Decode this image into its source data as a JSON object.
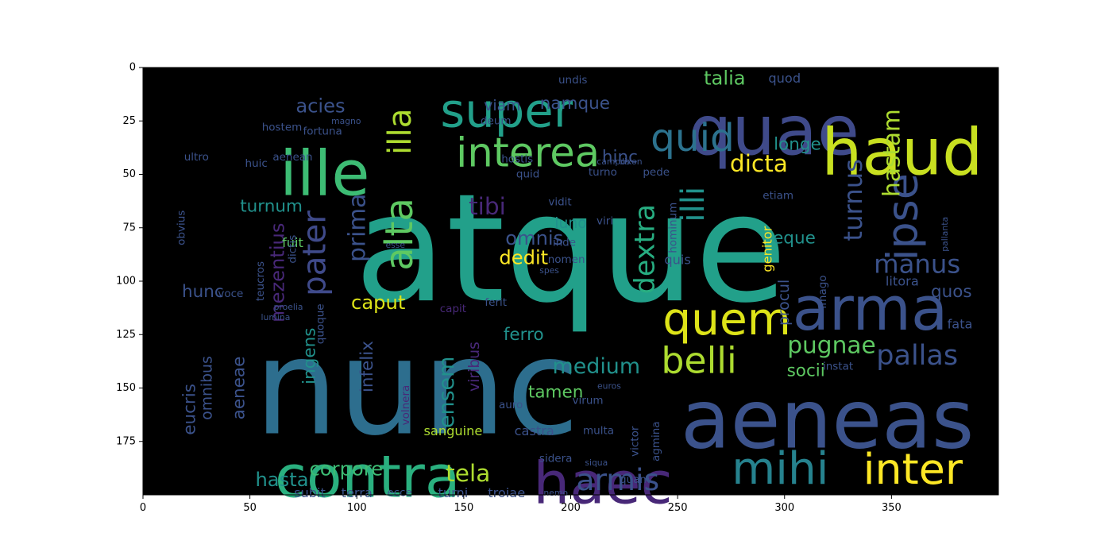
{
  "chart_data": {
    "type": "wordcloud",
    "title": "",
    "xlabel": "",
    "ylabel": "",
    "xlim": [
      0,
      400
    ],
    "ylim": [
      200,
      0
    ],
    "x_ticks": [
      0,
      50,
      100,
      150,
      200,
      250,
      300,
      350
    ],
    "y_ticks": [
      0,
      25,
      50,
      75,
      100,
      125,
      150,
      175
    ],
    "background": "#000000",
    "palette": [
      "#440154",
      "#3b528b",
      "#21918c",
      "#5ec962",
      "#fde725"
    ],
    "words": [
      {
        "text": "atque",
        "x": 200,
        "y": 85,
        "size": 70,
        "color": "#22a08a",
        "rot": 0
      },
      {
        "text": "nunc",
        "x": 128,
        "y": 150,
        "size": 62,
        "color": "#2d6e8e",
        "rot": 0
      },
      {
        "text": "aeneas",
        "x": 320,
        "y": 165,
        "size": 38,
        "color": "#3b528b",
        "rot": 0
      },
      {
        "text": "quae",
        "x": 295,
        "y": 30,
        "size": 32,
        "color": "#3f4a8a",
        "rot": 0
      },
      {
        "text": "haud",
        "x": 355,
        "y": 40,
        "size": 30,
        "color": "#c8e020",
        "rot": 0
      },
      {
        "text": "ille",
        "x": 85,
        "y": 50,
        "size": 29,
        "color": "#3dbc74",
        "rot": 0
      },
      {
        "text": "arma",
        "x": 340,
        "y": 113,
        "size": 28,
        "color": "#3b528b",
        "rot": 0
      },
      {
        "text": "contra",
        "x": 105,
        "y": 192,
        "size": 27,
        "color": "#2ab07f",
        "rot": 0
      },
      {
        "text": "haec",
        "x": 215,
        "y": 195,
        "size": 27,
        "color": "#482878",
        "rot": 0
      },
      {
        "text": "super",
        "x": 170,
        "y": 20,
        "size": 22,
        "color": "#22a08a",
        "rot": 0
      },
      {
        "text": "quem",
        "x": 273,
        "y": 118,
        "size": 21,
        "color": "#dde318",
        "rot": 0
      },
      {
        "text": "mihi",
        "x": 298,
        "y": 188,
        "size": 21,
        "color": "#26828e",
        "rot": 0
      },
      {
        "text": "inter",
        "x": 360,
        "y": 188,
        "size": 20,
        "color": "#fde725",
        "rot": 0
      },
      {
        "text": "interea",
        "x": 180,
        "y": 40,
        "size": 19,
        "color": "#5ec962",
        "rot": 0
      },
      {
        "text": "quid",
        "x": 257,
        "y": 33,
        "size": 18,
        "color": "#2c728e",
        "rot": 0
      },
      {
        "text": "belli",
        "x": 260,
        "y": 137,
        "size": 17,
        "color": "#addc30",
        "rot": 0
      },
      {
        "text": "ipse",
        "x": 355,
        "y": 70,
        "size": 20,
        "color": "#3b528b",
        "rot": -90
      },
      {
        "text": "alta",
        "x": 120,
        "y": 78,
        "size": 18,
        "color": "#5ec962",
        "rot": -90
      },
      {
        "text": "illa",
        "x": 120,
        "y": 30,
        "size": 15,
        "color": "#addc30",
        "rot": -90
      },
      {
        "text": "illi",
        "x": 257,
        "y": 64,
        "size": 15,
        "color": "#21918c",
        "rot": -90
      },
      {
        "text": "dextra",
        "x": 235,
        "y": 85,
        "size": 13,
        "color": "#27ad81",
        "rot": -90
      },
      {
        "text": "pater",
        "x": 80,
        "y": 87,
        "size": 15,
        "color": "#3f4a8a",
        "rot": -90
      },
      {
        "text": "prima",
        "x": 100,
        "y": 75,
        "size": 11,
        "color": "#3b528b",
        "rot": -90
      },
      {
        "text": "pallas",
        "x": 362,
        "y": 135,
        "size": 13,
        "color": "#3b528b",
        "rot": 0
      },
      {
        "text": "armis",
        "x": 222,
        "y": 193,
        "size": 14,
        "color": "#3b528b",
        "rot": 0
      },
      {
        "text": "pugnae",
        "x": 322,
        "y": 130,
        "size": 11,
        "color": "#5ec962",
        "rot": 0
      },
      {
        "text": "manus",
        "x": 362,
        "y": 92,
        "size": 12,
        "color": "#3b528b",
        "rot": 0
      },
      {
        "text": "turnus",
        "x": 332,
        "y": 62,
        "size": 12,
        "color": "#3b528b",
        "rot": -90
      },
      {
        "text": "hastam",
        "x": 350,
        "y": 40,
        "size": 11,
        "color": "#addc30",
        "rot": -90
      },
      {
        "text": "dicta",
        "x": 288,
        "y": 45,
        "size": 11,
        "color": "#fde725",
        "rot": 0
      },
      {
        "text": "medium",
        "x": 212,
        "y": 140,
        "size": 10,
        "color": "#21918c",
        "rot": 0
      },
      {
        "text": "tela",
        "x": 152,
        "y": 190,
        "size": 11,
        "color": "#addc30",
        "rot": 0
      },
      {
        "text": "tibi",
        "x": 161,
        "y": 65,
        "size": 11,
        "color": "#482878",
        "rot": 0
      },
      {
        "text": "omnis",
        "x": 183,
        "y": 80,
        "size": 9,
        "color": "#3b528b",
        "rot": 0
      },
      {
        "text": "dedit",
        "x": 178,
        "y": 89,
        "size": 9,
        "color": "#fde725",
        "rot": 0
      },
      {
        "text": "mezentius",
        "x": 63,
        "y": 96,
        "size": 9,
        "color": "#482878",
        "rot": -90
      },
      {
        "text": "ensem",
        "x": 142,
        "y": 152,
        "size": 10,
        "color": "#21918c",
        "rot": -90
      },
      {
        "text": "caput",
        "x": 110,
        "y": 110,
        "size": 9,
        "color": "#dde318",
        "rot": 0
      },
      {
        "text": "corpore",
        "x": 95,
        "y": 188,
        "size": 9,
        "color": "#3dbc74",
        "rot": 0
      },
      {
        "text": "hasta",
        "x": 65,
        "y": 193,
        "size": 9,
        "color": "#21918c",
        "rot": 0
      },
      {
        "text": "acies",
        "x": 83,
        "y": 18,
        "size": 9,
        "color": "#3b528b",
        "rot": 0
      },
      {
        "text": "talia",
        "x": 272,
        "y": 5,
        "size": 9,
        "color": "#5ec962",
        "rot": 0
      },
      {
        "text": "hinc",
        "x": 223,
        "y": 42,
        "size": 8,
        "color": "#3b528b",
        "rot": 0
      },
      {
        "text": "namque",
        "x": 202,
        "y": 17,
        "size": 8,
        "color": "#3b528b",
        "rot": 0
      },
      {
        "text": "longe",
        "x": 306,
        "y": 36,
        "size": 8,
        "color": "#21918c",
        "rot": 0
      },
      {
        "text": "neque",
        "x": 302,
        "y": 80,
        "size": 8,
        "color": "#21918c",
        "rot": 0
      },
      {
        "text": "quos",
        "x": 378,
        "y": 105,
        "size": 8,
        "color": "#3b528b",
        "rot": 0
      },
      {
        "text": "socii",
        "x": 310,
        "y": 142,
        "size": 8,
        "color": "#5ec962",
        "rot": 0
      },
      {
        "text": "tamen",
        "x": 193,
        "y": 152,
        "size": 8,
        "color": "#5ec962",
        "rot": 0
      },
      {
        "text": "ferro",
        "x": 178,
        "y": 125,
        "size": 8,
        "color": "#21918c",
        "rot": 0
      },
      {
        "text": "ingens",
        "x": 78,
        "y": 135,
        "size": 8,
        "color": "#21918c",
        "rot": -90
      },
      {
        "text": "infelix",
        "x": 105,
        "y": 140,
        "size": 8,
        "color": "#3b528b",
        "rot": -90
      },
      {
        "text": "iuno",
        "x": 200,
        "y": 73,
        "size": 7,
        "color": "#21918c",
        "rot": 0
      },
      {
        "text": "viam",
        "x": 168,
        "y": 18,
        "size": 7,
        "color": "#3b528b",
        "rot": 0
      },
      {
        "text": "turnum",
        "x": 60,
        "y": 65,
        "size": 8,
        "color": "#21918c",
        "rot": 0
      },
      {
        "text": "hunc",
        "x": 28,
        "y": 105,
        "size": 8,
        "color": "#3b528b",
        "rot": 0
      },
      {
        "text": "aeneae",
        "x": 45,
        "y": 150,
        "size": 8,
        "color": "#3b528b",
        "rot": -90
      },
      {
        "text": "eucris",
        "x": 22,
        "y": 160,
        "size": 8,
        "color": "#3b528b",
        "rot": -90
      },
      {
        "text": "omnibus",
        "x": 30,
        "y": 150,
        "size": 7,
        "color": "#3b528b",
        "rot": -90
      },
      {
        "text": "viribus",
        "x": 155,
        "y": 140,
        "size": 7,
        "color": "#482878",
        "rot": -90
      },
      {
        "text": "sanguine",
        "x": 145,
        "y": 170,
        "size": 6,
        "color": "#addc30",
        "rot": 0
      },
      {
        "text": "castra",
        "x": 183,
        "y": 170,
        "size": 6,
        "color": "#3b528b",
        "rot": 0
      },
      {
        "text": "subit",
        "x": 78,
        "y": 199,
        "size": 6,
        "color": "#3b528b",
        "rot": 0
      },
      {
        "text": "terra",
        "x": 100,
        "y": 199,
        "size": 6,
        "color": "#3b528b",
        "rot": 0
      },
      {
        "text": "turni",
        "x": 145,
        "y": 199,
        "size": 6,
        "color": "#3b528b",
        "rot": 0
      },
      {
        "text": "troiae",
        "x": 170,
        "y": 199,
        "size": 6,
        "color": "#3b528b",
        "rot": 0
      },
      {
        "text": "fuit",
        "x": 70,
        "y": 82,
        "size": 6,
        "color": "#5ec962",
        "rot": 0
      },
      {
        "text": "genitor",
        "x": 292,
        "y": 85,
        "size": 6,
        "color": "#fde725",
        "rot": -90
      },
      {
        "text": "procul",
        "x": 300,
        "y": 110,
        "size": 7,
        "color": "#3b528b",
        "rot": -90
      },
      {
        "text": "litora",
        "x": 355,
        "y": 100,
        "size": 6,
        "color": "#3b528b",
        "rot": 0
      },
      {
        "text": "fata",
        "x": 382,
        "y": 120,
        "size": 6,
        "color": "#3b528b",
        "rot": 0
      },
      {
        "text": "quod",
        "x": 300,
        "y": 5,
        "size": 6,
        "color": "#3b528b",
        "rot": 0
      },
      {
        "text": "quis",
        "x": 250,
        "y": 90,
        "size": 6,
        "color": "#3b528b",
        "rot": 0
      },
      {
        "text": "inde",
        "x": 197,
        "y": 82,
        "size": 5,
        "color": "#3b528b",
        "rot": 0
      },
      {
        "text": "nomen",
        "x": 198,
        "y": 90,
        "size": 5,
        "color": "#3b528b",
        "rot": 0
      },
      {
        "text": "vidit",
        "x": 195,
        "y": 63,
        "size": 5,
        "color": "#3b528b",
        "rot": 0
      },
      {
        "text": "viri",
        "x": 216,
        "y": 72,
        "size": 5,
        "color": "#3b528b",
        "rot": 0
      },
      {
        "text": "ferit",
        "x": 165,
        "y": 110,
        "size": 5,
        "color": "#3b528b",
        "rot": 0
      },
      {
        "text": "sidera",
        "x": 193,
        "y": 183,
        "size": 5,
        "color": "#3b528b",
        "rot": 0
      },
      {
        "text": "quam",
        "x": 230,
        "y": 193,
        "size": 5,
        "color": "#3b528b",
        "rot": 0
      },
      {
        "text": "victor",
        "x": 230,
        "y": 175,
        "size": 5,
        "color": "#3b528b",
        "rot": -90
      },
      {
        "text": "undis",
        "x": 201,
        "y": 6,
        "size": 5,
        "color": "#3b528b",
        "rot": 0
      },
      {
        "text": "deum",
        "x": 165,
        "y": 25,
        "size": 5,
        "color": "#3b528b",
        "rot": 0
      },
      {
        "text": "hostis",
        "x": 175,
        "y": 43,
        "size": 5,
        "color": "#3b528b",
        "rot": 0
      },
      {
        "text": "quid",
        "x": 180,
        "y": 50,
        "size": 5,
        "color": "#3b528b",
        "rot": 0
      },
      {
        "text": "fortuna",
        "x": 84,
        "y": 30,
        "size": 5,
        "color": "#3b528b",
        "rot": 0
      },
      {
        "text": "aenean",
        "x": 70,
        "y": 42,
        "size": 5,
        "color": "#3b528b",
        "rot": 0
      },
      {
        "text": "huic",
        "x": 53,
        "y": 45,
        "size": 5,
        "color": "#3b528b",
        "rot": 0
      },
      {
        "text": "ultro",
        "x": 25,
        "y": 42,
        "size": 5,
        "color": "#3b528b",
        "rot": 0
      },
      {
        "text": "hostem",
        "x": 65,
        "y": 28,
        "size": 5,
        "color": "#3b528b",
        "rot": 0
      },
      {
        "text": "voce",
        "x": 41,
        "y": 106,
        "size": 5,
        "color": "#3b528b",
        "rot": 0
      },
      {
        "text": "teucros",
        "x": 55,
        "y": 100,
        "size": 5,
        "color": "#3b528b",
        "rot": -90
      },
      {
        "text": "dictis",
        "x": 70,
        "y": 85,
        "size": 5,
        "color": "#3b528b",
        "rot": -90
      },
      {
        "text": "quoque",
        "x": 83,
        "y": 120,
        "size": 5,
        "color": "#3b528b",
        "rot": -90
      },
      {
        "text": "obvius",
        "x": 18,
        "y": 75,
        "size": 5,
        "color": "#3b528b",
        "rot": -90
      },
      {
        "text": "turno",
        "x": 215,
        "y": 49,
        "size": 5,
        "color": "#3b528b",
        "rot": 0
      },
      {
        "text": "pede",
        "x": 240,
        "y": 49,
        "size": 5,
        "color": "#3b528b",
        "rot": 0
      },
      {
        "text": "hominum",
        "x": 248,
        "y": 75,
        "size": 5,
        "color": "#3b528b",
        "rot": -90
      },
      {
        "text": "etiam",
        "x": 297,
        "y": 60,
        "size": 5,
        "color": "#3b528b",
        "rot": 0
      },
      {
        "text": "imago",
        "x": 318,
        "y": 105,
        "size": 5,
        "color": "#3b528b",
        "rot": -90
      },
      {
        "text": "instat",
        "x": 325,
        "y": 140,
        "size": 5,
        "color": "#3b528b",
        "rot": 0
      },
      {
        "text": "volnera",
        "x": 123,
        "y": 158,
        "size": 5,
        "color": "#482878",
        "rot": -90
      },
      {
        "text": "auro",
        "x": 172,
        "y": 158,
        "size": 5,
        "color": "#3b528b",
        "rot": 0
      },
      {
        "text": "virum",
        "x": 208,
        "y": 156,
        "size": 5,
        "color": "#3b528b",
        "rot": 0
      },
      {
        "text": "multa",
        "x": 213,
        "y": 170,
        "size": 5,
        "color": "#3b528b",
        "rot": 0
      },
      {
        "text": "agmina",
        "x": 240,
        "y": 175,
        "size": 5,
        "color": "#3b528b",
        "rot": -90
      },
      {
        "text": "ecce",
        "x": 120,
        "y": 199,
        "size": 5,
        "color": "#3b528b",
        "rot": 0
      },
      {
        "text": "capit",
        "x": 145,
        "y": 113,
        "size": 5,
        "color": "#482878",
        "rot": 0
      },
      {
        "text": "nemo",
        "x": 193,
        "y": 199,
        "size": 4,
        "color": "#3b528b",
        "rot": 0
      },
      {
        "text": "siqua",
        "x": 212,
        "y": 185,
        "size": 4,
        "color": "#3b528b",
        "rot": 0
      },
      {
        "text": "esse",
        "x": 118,
        "y": 83,
        "size": 4,
        "color": "#3b528b",
        "rot": 0
      },
      {
        "text": "pallanta",
        "x": 375,
        "y": 78,
        "size": 4,
        "color": "#3b528b",
        "rot": -90
      },
      {
        "text": "euros",
        "x": 218,
        "y": 149,
        "size": 4,
        "color": "#3b528b",
        "rot": 0
      },
      {
        "text": "magno",
        "x": 95,
        "y": 25,
        "size": 4,
        "color": "#3b528b",
        "rot": 0
      },
      {
        "text": "campos",
        "x": 220,
        "y": 44,
        "size": 4,
        "color": "#3b528b",
        "rot": 0
      },
      {
        "text": "dixon",
        "x": 228,
        "y": 44,
        "size": 4,
        "color": "#3b528b",
        "rot": 0
      },
      {
        "text": "proelia",
        "x": 68,
        "y": 112,
        "size": 4,
        "color": "#3b528b",
        "rot": 0
      },
      {
        "text": "lumina",
        "x": 62,
        "y": 117,
        "size": 4,
        "color": "#3b528b",
        "rot": 0
      },
      {
        "text": "spes",
        "x": 190,
        "y": 95,
        "size": 4,
        "color": "#3b528b",
        "rot": 0
      }
    ]
  }
}
